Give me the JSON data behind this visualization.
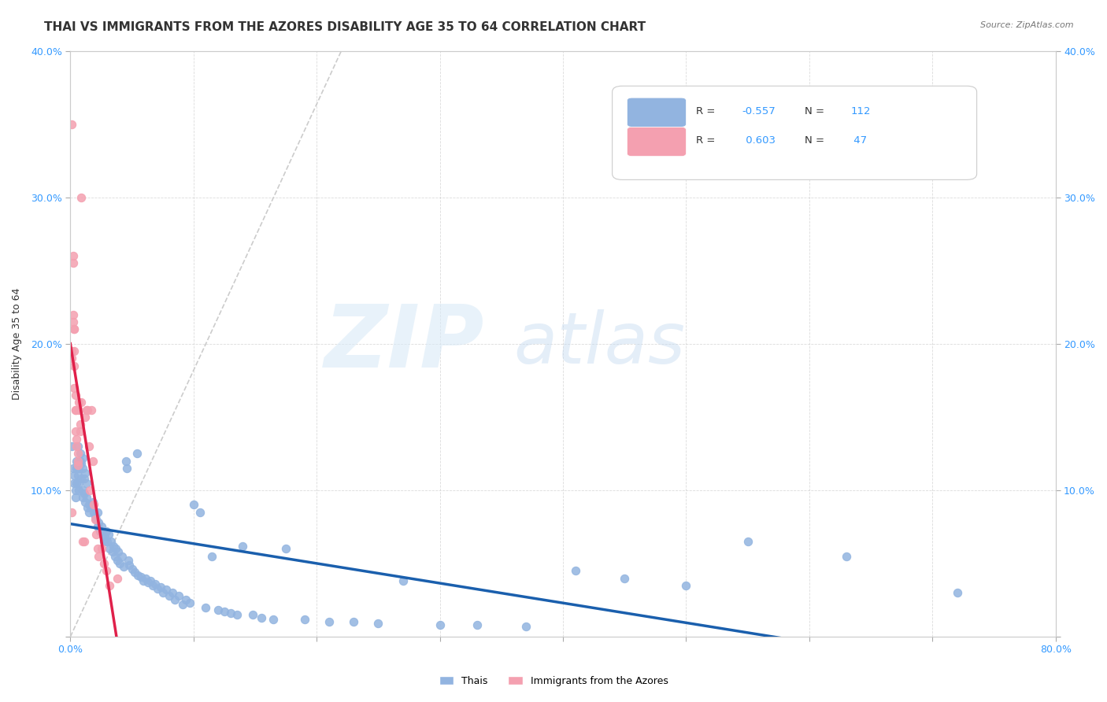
{
  "title": "THAI VS IMMIGRANTS FROM THE AZORES DISABILITY AGE 35 TO 64 CORRELATION CHART",
  "source": "Source: ZipAtlas.com",
  "xlabel": "",
  "ylabel": "Disability Age 35 to 64",
  "xlim": [
    0.0,
    0.8
  ],
  "ylim": [
    0.0,
    0.4
  ],
  "xticks": [
    0.0,
    0.1,
    0.2,
    0.3,
    0.4,
    0.5,
    0.6,
    0.7,
    0.8
  ],
  "xticklabels": [
    "0.0%",
    "",
    "",
    "",
    "",
    "",
    "",
    "",
    "80.0%"
  ],
  "yticks": [
    0.0,
    0.1,
    0.2,
    0.3,
    0.4
  ],
  "yticklabels": [
    "",
    "10.0%",
    "20.0%",
    "30.0%",
    "40.0%"
  ],
  "legend_R_blue": "-0.557",
  "legend_N_blue": "112",
  "legend_R_pink": "0.603",
  "legend_N_pink": "47",
  "blue_color": "#92b4e0",
  "pink_color": "#f4a0b0",
  "line_blue_color": "#1a5fad",
  "line_pink_color": "#e0204a",
  "watermark_zip": "ZIP",
  "watermark_atlas": "atlas",
  "background_color": "#ffffff",
  "title_fontsize": 11,
  "axis_label_fontsize": 9,
  "tick_fontsize": 9,
  "blue_scatter_x": [
    0.001,
    0.002,
    0.003,
    0.003,
    0.004,
    0.004,
    0.005,
    0.005,
    0.005,
    0.006,
    0.006,
    0.007,
    0.007,
    0.007,
    0.008,
    0.008,
    0.009,
    0.009,
    0.01,
    0.01,
    0.01,
    0.01,
    0.011,
    0.011,
    0.012,
    0.012,
    0.013,
    0.013,
    0.014,
    0.015,
    0.015,
    0.016,
    0.017,
    0.018,
    0.019,
    0.02,
    0.021,
    0.022,
    0.022,
    0.023,
    0.024,
    0.025,
    0.026,
    0.027,
    0.028,
    0.029,
    0.03,
    0.031,
    0.032,
    0.033,
    0.034,
    0.035,
    0.036,
    0.037,
    0.038,
    0.039,
    0.04,
    0.042,
    0.043,
    0.045,
    0.046,
    0.047,
    0.048,
    0.05,
    0.052,
    0.054,
    0.055,
    0.057,
    0.059,
    0.061,
    0.063,
    0.065,
    0.067,
    0.069,
    0.071,
    0.073,
    0.075,
    0.078,
    0.08,
    0.083,
    0.085,
    0.088,
    0.091,
    0.094,
    0.097,
    0.1,
    0.105,
    0.11,
    0.115,
    0.12,
    0.125,
    0.13,
    0.135,
    0.14,
    0.148,
    0.155,
    0.165,
    0.175,
    0.19,
    0.21,
    0.23,
    0.25,
    0.27,
    0.3,
    0.33,
    0.37,
    0.41,
    0.45,
    0.5,
    0.55,
    0.63,
    0.72
  ],
  "blue_scatter_y": [
    0.13,
    0.115,
    0.11,
    0.105,
    0.1,
    0.095,
    0.12,
    0.115,
    0.105,
    0.11,
    0.13,
    0.105,
    0.115,
    0.1,
    0.125,
    0.12,
    0.108,
    0.118,
    0.1,
    0.095,
    0.115,
    0.122,
    0.098,
    0.108,
    0.112,
    0.092,
    0.105,
    0.095,
    0.088,
    0.09,
    0.085,
    0.09,
    0.088,
    0.092,
    0.085,
    0.082,
    0.08,
    0.075,
    0.085,
    0.078,
    0.072,
    0.075,
    0.07,
    0.065,
    0.068,
    0.072,
    0.065,
    0.07,
    0.06,
    0.065,
    0.058,
    0.062,
    0.055,
    0.06,
    0.052,
    0.058,
    0.05,
    0.055,
    0.048,
    0.12,
    0.115,
    0.052,
    0.049,
    0.046,
    0.044,
    0.125,
    0.042,
    0.041,
    0.038,
    0.04,
    0.037,
    0.038,
    0.035,
    0.036,
    0.033,
    0.034,
    0.03,
    0.032,
    0.028,
    0.03,
    0.025,
    0.028,
    0.022,
    0.025,
    0.023,
    0.09,
    0.085,
    0.02,
    0.055,
    0.018,
    0.017,
    0.016,
    0.015,
    0.062,
    0.015,
    0.013,
    0.012,
    0.06,
    0.012,
    0.01,
    0.01,
    0.009,
    0.038,
    0.008,
    0.008,
    0.007,
    0.045,
    0.04,
    0.035,
    0.065,
    0.055,
    0.03
  ],
  "pink_scatter_x": [
    0.001,
    0.001,
    0.001,
    0.001,
    0.002,
    0.002,
    0.002,
    0.002,
    0.003,
    0.003,
    0.003,
    0.003,
    0.003,
    0.004,
    0.004,
    0.004,
    0.004,
    0.005,
    0.005,
    0.006,
    0.006,
    0.006,
    0.007,
    0.007,
    0.008,
    0.008,
    0.009,
    0.009,
    0.01,
    0.011,
    0.012,
    0.013,
    0.014,
    0.015,
    0.016,
    0.017,
    0.018,
    0.019,
    0.02,
    0.021,
    0.022,
    0.023,
    0.025,
    0.027,
    0.029,
    0.032,
    0.038
  ],
  "pink_scatter_y": [
    0.35,
    0.195,
    0.19,
    0.085,
    0.255,
    0.26,
    0.22,
    0.215,
    0.21,
    0.21,
    0.195,
    0.185,
    0.17,
    0.165,
    0.155,
    0.155,
    0.14,
    0.135,
    0.13,
    0.12,
    0.125,
    0.117,
    0.16,
    0.155,
    0.145,
    0.14,
    0.16,
    0.3,
    0.065,
    0.065,
    0.15,
    0.155,
    0.155,
    0.13,
    0.1,
    0.155,
    0.12,
    0.09,
    0.08,
    0.07,
    0.06,
    0.055,
    0.06,
    0.05,
    0.045,
    0.035,
    0.04
  ]
}
